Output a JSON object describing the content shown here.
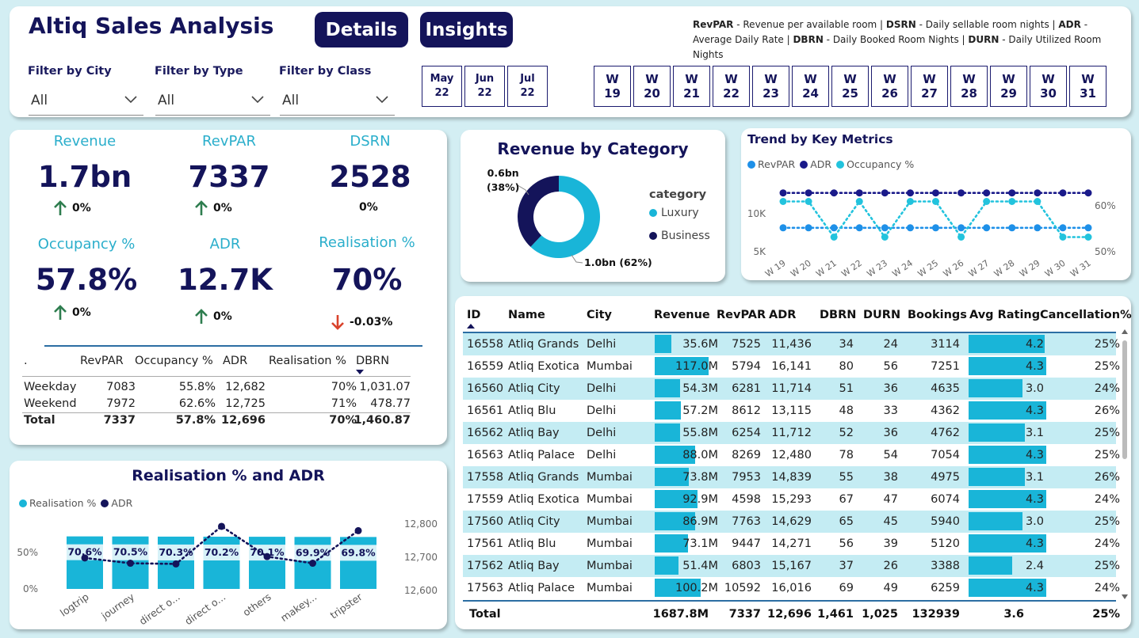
{
  "app_title": "Altiq Sales Analysis",
  "nav": {
    "details": "Details",
    "insights": "Insights"
  },
  "glossary": [
    {
      "abbr": "RevPAR",
      "desc": " - Revenue per available room | "
    },
    {
      "abbr": "DSRN",
      "desc": " - Daily sellable room nights | "
    },
    {
      "abbr": "ADR",
      "desc": " - Average Daily Rate | "
    },
    {
      "abbr": "DBRN",
      "desc": " - Daily Booked Room Nights | "
    },
    {
      "abbr": "DURN",
      "desc": " - Daily Utilized Room Nights"
    }
  ],
  "filters": [
    {
      "label": "Filter by City",
      "value": "All"
    },
    {
      "label": "Filter by Type",
      "value": "All"
    },
    {
      "label": "Filter by Class",
      "value": "All"
    }
  ],
  "months": [
    {
      "m": "May",
      "y": "22"
    },
    {
      "m": "Jun",
      "y": "22"
    },
    {
      "m": "Jul",
      "y": "22"
    }
  ],
  "weeks": [
    "19",
    "20",
    "21",
    "22",
    "23",
    "24",
    "25",
    "26",
    "27",
    "28",
    "29",
    "30",
    "31"
  ],
  "week_prefix": "W",
  "kpis": [
    {
      "label": "Revenue",
      "value": "1.7bn",
      "delta": "0%",
      "dir": "up"
    },
    {
      "label": "RevPAR",
      "value": "7337",
      "delta": "0%",
      "dir": "up"
    },
    {
      "label": "DSRN",
      "value": "2528",
      "delta": "0%",
      "dir": "none"
    },
    {
      "label": "Occupancy %",
      "value": "57.8%",
      "delta": "0%",
      "dir": "up"
    },
    {
      "label": "ADR",
      "value": "12.7K",
      "delta": "0%",
      "dir": "up"
    },
    {
      "label": "Realisation %",
      "value": "70%",
      "delta": "-0.03%",
      "dir": "down"
    }
  ],
  "day_table": {
    "headers": [
      ".",
      "RevPAR",
      "Occupancy %",
      "ADR",
      "Realisation %",
      "DBRN"
    ],
    "rows": [
      [
        "Weekday",
        "7083",
        "55.8%",
        "12,682",
        "70%",
        "1,031.07"
      ],
      [
        "Weekend",
        "7972",
        "62.6%",
        "12,725",
        "71%",
        "478.77"
      ]
    ],
    "total": [
      "Total",
      "7337",
      "57.8%",
      "12,696",
      "70%",
      "1,460.87"
    ]
  },
  "donut": {
    "title": "Revenue by Category",
    "legend_title": "category",
    "label_business": "0.6bn",
    "label_business_pct": "(38%)",
    "label_luxury": "1.0bn (62%)",
    "colors": {
      "luxury": "#19b5d8",
      "business": "#14145a"
    }
  },
  "trend": {
    "title": "Trend by Key Metrics",
    "y_left_ticks": [
      "10K",
      "5K"
    ],
    "y_right_ticks": [
      "60%",
      "50%"
    ],
    "colors": {
      "revpar": "#1e90e8",
      "adr": "#1a1a8a",
      "occupancy": "#22c3dd"
    }
  },
  "realisation": {
    "title": "Realisation % and ADR",
    "y_left_ticks": [
      "50%",
      "0%"
    ],
    "y_right_ticks": [
      "12,800",
      "12,700",
      "12,600"
    ],
    "colors": {
      "bar": "#19b5d8",
      "line": "#14145a"
    }
  },
  "chart_data": [
    {
      "type": "pie",
      "title": "Revenue by Category",
      "categories": [
        "Luxury",
        "Business"
      ],
      "values": [
        62,
        38
      ],
      "value_labels": [
        "1.0bn (62%)",
        "0.6bn (38%)"
      ],
      "legend": "right"
    },
    {
      "type": "line",
      "title": "Trend by Key Metrics",
      "x": [
        "W 19",
        "W 20",
        "W 21",
        "W 22",
        "W 23",
        "W 24",
        "W 25",
        "W 26",
        "W 27",
        "W 28",
        "W 29",
        "W 30",
        "W 31"
      ],
      "series": [
        {
          "name": "RevPAR",
          "values": [
            7800,
            7800,
            7800,
            7800,
            7800,
            7800,
            7800,
            7800,
            7800,
            7800,
            7800,
            7800,
            7800
          ]
        },
        {
          "name": "ADR",
          "values": [
            12700,
            12700,
            12700,
            12700,
            12700,
            12700,
            12700,
            12700,
            12700,
            12700,
            12700,
            12700,
            12700
          ]
        },
        {
          "name": "Occupancy %",
          "values": [
            60,
            60,
            52,
            60,
            52,
            60,
            60,
            52,
            60,
            60,
            60,
            52,
            52
          ]
        }
      ],
      "ylim_left": [
        4000,
        14000
      ],
      "ylim_right": [
        48,
        64
      ],
      "y_left_ticks": [
        "10K",
        "5K"
      ],
      "y_right_ticks": [
        "60%",
        "50%"
      ],
      "legend": "top-left"
    },
    {
      "type": "bar",
      "title": "Realisation % and ADR",
      "categories": [
        "logtrip",
        "journey",
        "direct o...",
        "direct o...",
        "others",
        "makey...",
        "tripster"
      ],
      "series": [
        {
          "name": "Realisation %",
          "values": [
            70.6,
            70.5,
            70.3,
            70.2,
            70.1,
            69.9,
            69.8
          ]
        },
        {
          "name": "ADR",
          "values": [
            12698,
            12682,
            12680,
            12793,
            12702,
            12682,
            12780
          ]
        }
      ],
      "ylim_left": [
        0,
        100
      ],
      "ylim_right": [
        12600,
        12800
      ],
      "y_left_ticks": [
        "50%",
        "0%"
      ],
      "y_right_ticks": [
        "12,800",
        "12,700",
        "12,600"
      ],
      "legend": "top-left"
    },
    {
      "type": "table",
      "title": "",
      "headers": [
        "ID",
        "Name",
        "City",
        "Revenue",
        "RevPAR",
        "ADR",
        "DBRN",
        "DURN",
        "Bookings",
        "Avg Rating",
        "Cancellation%"
      ],
      "rows": [
        [
          "16558",
          "Atliq Grands",
          "Delhi",
          "35.6M",
          "7525",
          "11,436",
          "34",
          "24",
          "3114",
          "4.2",
          "25%"
        ],
        [
          "16559",
          "Atliq Exotica",
          "Mumbai",
          "117.0M",
          "5794",
          "16,141",
          "80",
          "56",
          "7251",
          "4.3",
          "25%"
        ],
        [
          "16560",
          "Atliq City",
          "Delhi",
          "54.3M",
          "6281",
          "11,714",
          "51",
          "36",
          "4635",
          "3.0",
          "24%"
        ],
        [
          "16561",
          "Atliq Blu",
          "Delhi",
          "57.2M",
          "8612",
          "13,115",
          "48",
          "33",
          "4362",
          "4.3",
          "26%"
        ],
        [
          "16562",
          "Atliq Bay",
          "Delhi",
          "55.8M",
          "6254",
          "11,712",
          "52",
          "36",
          "4762",
          "3.1",
          "25%"
        ],
        [
          "16563",
          "Atliq Palace",
          "Delhi",
          "88.0M",
          "8269",
          "12,480",
          "78",
          "54",
          "7054",
          "4.3",
          "25%"
        ],
        [
          "17558",
          "Atliq Grands",
          "Mumbai",
          "73.8M",
          "7953",
          "14,839",
          "55",
          "38",
          "4975",
          "3.1",
          "26%"
        ],
        [
          "17559",
          "Atliq Exotica",
          "Mumbai",
          "92.9M",
          "4598",
          "15,293",
          "67",
          "47",
          "6074",
          "4.3",
          "24%"
        ],
        [
          "17560",
          "Atliq City",
          "Mumbai",
          "86.9M",
          "7763",
          "14,629",
          "65",
          "45",
          "5940",
          "3.0",
          "25%"
        ],
        [
          "17561",
          "Atliq Blu",
          "Mumbai",
          "73.1M",
          "9447",
          "14,271",
          "56",
          "39",
          "5120",
          "4.3",
          "24%"
        ],
        [
          "17562",
          "Atliq Bay",
          "Mumbai",
          "51.4M",
          "6803",
          "15,167",
          "37",
          "26",
          "3388",
          "2.4",
          "25%"
        ],
        [
          "17563",
          "Atliq Palace",
          "Mumbai",
          "100.2M",
          "10592",
          "16,016",
          "69",
          "49",
          "6259",
          "4.3",
          "24%"
        ]
      ],
      "total": [
        "Total",
        "",
        "",
        "1687.8M",
        "7337",
        "12,696",
        "1,461",
        "1,025",
        "132939",
        "3.6",
        "25%"
      ]
    }
  ]
}
